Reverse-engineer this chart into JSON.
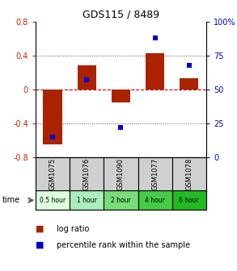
{
  "title": "GDS115 / 8489",
  "samples": [
    "GSM1075",
    "GSM1076",
    "GSM1090",
    "GSM1077",
    "GSM1078"
  ],
  "time_labels": [
    "0.5 hour",
    "1 hour",
    "2 hour",
    "4 hour",
    "6 hour"
  ],
  "time_colors": [
    "#ddffdd",
    "#aaeebb",
    "#77dd77",
    "#44cc44",
    "#22bb22"
  ],
  "log_ratios": [
    -0.65,
    0.28,
    -0.15,
    0.43,
    0.13
  ],
  "percentiles": [
    15,
    57,
    22,
    88,
    68
  ],
  "bar_color": "#aa2200",
  "dot_color": "#0000cc",
  "ylim_left": [
    -0.8,
    0.8
  ],
  "ylim_right": [
    0,
    100
  ],
  "yticks_left": [
    -0.8,
    -0.4,
    0,
    0.4,
    0.8
  ],
  "yticks_right": [
    0,
    25,
    50,
    75,
    100
  ],
  "ytick_labels_right": [
    "0",
    "25",
    "50",
    "75",
    "100%"
  ],
  "background_color": "#ffffff",
  "bar_width": 0.55,
  "legend_log_ratio": "log ratio",
  "legend_percentile": "percentile rank within the sample"
}
